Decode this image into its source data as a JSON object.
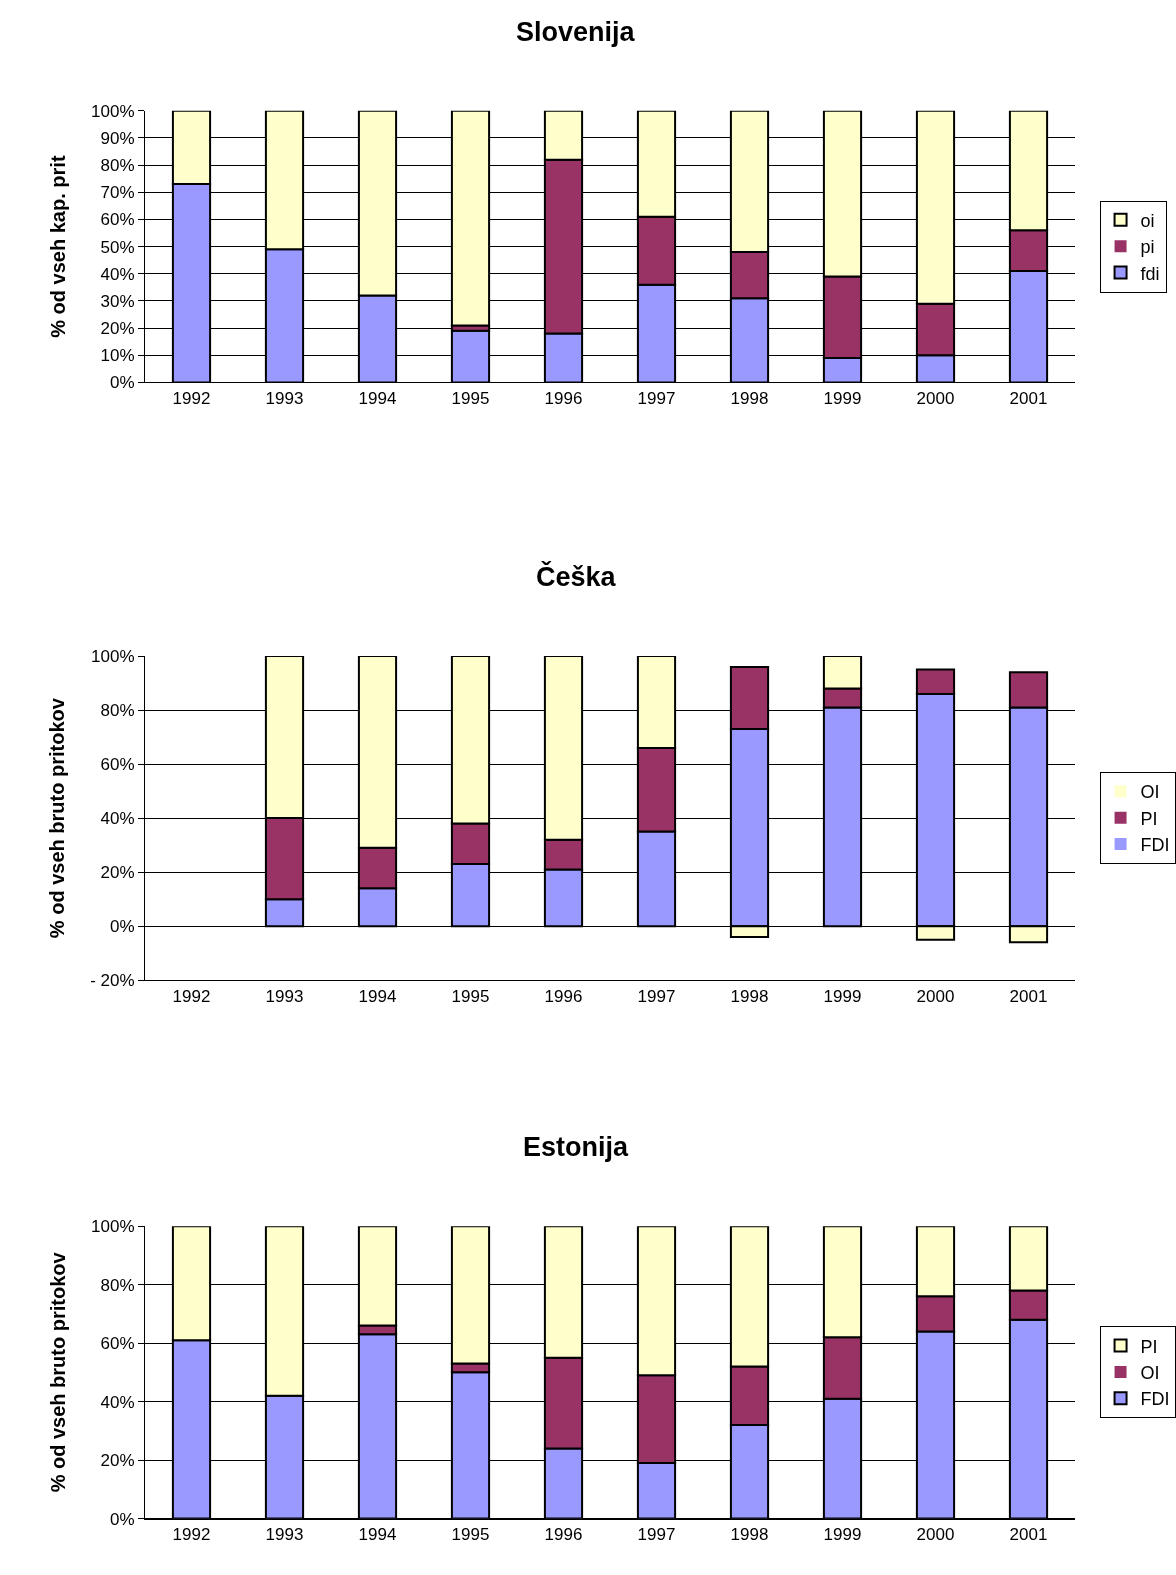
{
  "chart_data": [
    {
      "type": "bar",
      "stacked": true,
      "title": "Slovenija",
      "ylabel": "% od vseh kap. prit",
      "categories": [
        "1992",
        "1993",
        "1994",
        "1995",
        "1996",
        "1997",
        "1998",
        "1999",
        "2000",
        "2001"
      ],
      "series": [
        {
          "name": "fdi",
          "color": "#9999ff",
          "values": [
            73,
            49,
            32,
            19,
            18,
            36,
            31,
            9,
            10,
            41
          ]
        },
        {
          "name": "pi",
          "color": "#993366",
          "values": [
            0,
            0,
            0,
            2,
            64,
            25,
            17,
            30,
            19,
            15
          ]
        },
        {
          "name": "oi",
          "color": "#ffffcc",
          "values": [
            27,
            51,
            68,
            79,
            18,
            39,
            52,
            61,
            71,
            44
          ]
        }
      ],
      "ylim": [
        0,
        100
      ],
      "yticks": [
        {
          "value": 0,
          "label": "0%"
        },
        {
          "value": 10,
          "label": "10%"
        },
        {
          "value": 20,
          "label": "20%"
        },
        {
          "value": 30,
          "label": "30%"
        },
        {
          "value": 40,
          "label": "40%"
        },
        {
          "value": 50,
          "label": "50%"
        },
        {
          "value": 60,
          "label": "60%"
        },
        {
          "value": 70,
          "label": "70%"
        },
        {
          "value": 80,
          "label": "80%"
        },
        {
          "value": 90,
          "label": "90%"
        },
        {
          "value": 100,
          "label": "100%"
        }
      ],
      "grid": "y",
      "legend": "right"
    },
    {
      "type": "bar",
      "stacked": true,
      "title": "Češka",
      "ylabel": "% od vseh bruto pritokov",
      "categories": [
        "1992",
        "1993",
        "1994",
        "1995",
        "1996",
        "1997",
        "1998",
        "1999",
        "2000",
        "2001"
      ],
      "series": [
        {
          "name": "FDI",
          "color": "#9999ff",
          "values": [
            null,
            10,
            14,
            23,
            21,
            35,
            73,
            81,
            86,
            81
          ]
        },
        {
          "name": "PI",
          "color": "#993366",
          "values": [
            null,
            30,
            15,
            15,
            11,
            31,
            23,
            7,
            9,
            13
          ]
        },
        {
          "name": "OI",
          "color": "#ffffcc",
          "values": [
            null,
            60,
            71,
            62,
            68,
            34,
            -4,
            12,
            -5,
            -6
          ]
        }
      ],
      "ylim": [
        -20,
        100
      ],
      "yticks": [
        {
          "value": -20,
          "label": "- 20%"
        },
        {
          "value": 0,
          "label": "0%"
        },
        {
          "value": 20,
          "label": "20%"
        },
        {
          "value": 40,
          "label": "40%"
        },
        {
          "value": 60,
          "label": "60%"
        },
        {
          "value": 80,
          "label": "80%"
        },
        {
          "value": 100,
          "label": "100%"
        }
      ],
      "grid": "y",
      "legend": "right"
    },
    {
      "type": "bar",
      "stacked": true,
      "title": "Estonija",
      "ylabel": "% od vseh bruto pritokov",
      "categories": [
        "1992",
        "1993",
        "1994",
        "1995",
        "1996",
        "1997",
        "1998",
        "1999",
        "2000",
        "2001"
      ],
      "series": [
        {
          "name": "FDI",
          "color": "#9999ff",
          "values": [
            61,
            42,
            63,
            50,
            24,
            19,
            32,
            41,
            64,
            68
          ]
        },
        {
          "name": "OI",
          "color": "#993366",
          "values": [
            0,
            0,
            3,
            3,
            31,
            30,
            20,
            21,
            12,
            10
          ]
        },
        {
          "name": "PI",
          "color": "#ffffcc",
          "values": [
            39,
            58,
            34,
            47,
            45,
            51,
            48,
            38,
            24,
            22
          ]
        }
      ],
      "ylim": [
        0,
        100
      ],
      "yticks": [
        {
          "value": 0,
          "label": "0%"
        },
        {
          "value": 20,
          "label": "20%"
        },
        {
          "value": 40,
          "label": "40%"
        },
        {
          "value": 60,
          "label": "60%"
        },
        {
          "value": 80,
          "label": "80%"
        },
        {
          "value": 100,
          "label": "100%"
        }
      ],
      "grid": "y",
      "legend": "right"
    }
  ]
}
